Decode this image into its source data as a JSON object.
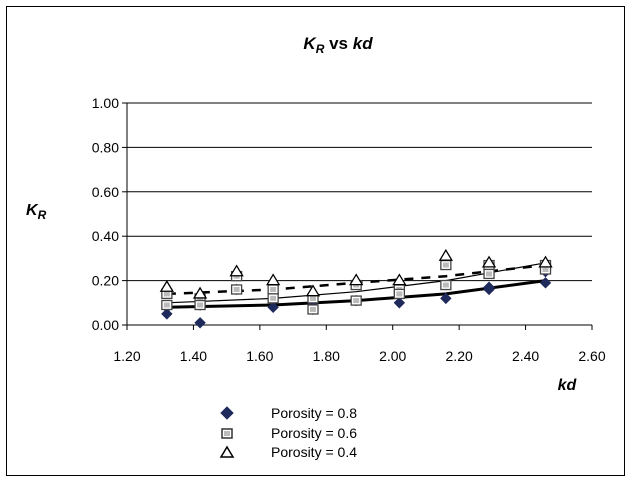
{
  "chart_data": {
    "type": "scatter",
    "title": "K_R vs kd",
    "title_main": "K",
    "title_sub": "R",
    "title_rest": " vs ",
    "title_var": "kd",
    "xlabel": "kd",
    "ylabel_main": "K",
    "ylabel_sub": "R",
    "xlim": [
      1.2,
      2.6
    ],
    "ylim": [
      0.0,
      1.0
    ],
    "x_ticks": [
      "1.20",
      "1.40",
      "1.60",
      "1.80",
      "2.00",
      "2.20",
      "2.40",
      "2.60"
    ],
    "y_ticks": [
      "0.00",
      "0.20",
      "0.40",
      "0.60",
      "0.80",
      "1.00"
    ],
    "grid": "horizontal",
    "legend_position": "bottom-left",
    "series": [
      {
        "name": "Porosity = 0.8",
        "marker": "diamond",
        "color": "#1f2a5c",
        "trendline": "bold-solid",
        "points": [
          [
            1.32,
            0.05
          ],
          [
            1.32,
            0.08
          ],
          [
            1.42,
            0.01
          ],
          [
            1.42,
            0.09
          ],
          [
            1.53,
            0.16
          ],
          [
            1.64,
            0.08
          ],
          [
            1.76,
            0.07
          ],
          [
            1.76,
            0.1
          ],
          [
            1.89,
            0.11
          ],
          [
            2.02,
            0.1
          ],
          [
            2.16,
            0.12
          ],
          [
            2.29,
            0.16
          ],
          [
            2.29,
            0.17
          ],
          [
            2.46,
            0.19
          ],
          [
            2.46,
            0.24
          ]
        ],
        "trend": [
          [
            1.32,
            0.08
          ],
          [
            1.64,
            0.09
          ],
          [
            1.89,
            0.11
          ],
          [
            2.16,
            0.14
          ],
          [
            2.46,
            0.2
          ]
        ]
      },
      {
        "name": "Porosity = 0.6",
        "marker": "square",
        "color": "#555555",
        "trendline": "dashed",
        "points": [
          [
            1.32,
            0.14
          ],
          [
            1.32,
            0.09
          ],
          [
            1.42,
            0.12
          ],
          [
            1.42,
            0.09
          ],
          [
            1.53,
            0.22
          ],
          [
            1.53,
            0.16
          ],
          [
            1.64,
            0.16
          ],
          [
            1.64,
            0.12
          ],
          [
            1.76,
            0.12
          ],
          [
            1.76,
            0.07
          ],
          [
            1.89,
            0.18
          ],
          [
            1.89,
            0.11
          ],
          [
            2.02,
            0.16
          ],
          [
            2.02,
            0.14
          ],
          [
            2.16,
            0.27
          ],
          [
            2.16,
            0.18
          ],
          [
            2.29,
            0.27
          ],
          [
            2.29,
            0.23
          ],
          [
            2.46,
            0.27
          ],
          [
            2.46,
            0.25
          ]
        ],
        "trend": [
          [
            1.32,
            0.14
          ],
          [
            1.64,
            0.16
          ],
          [
            1.89,
            0.19
          ],
          [
            2.16,
            0.22
          ],
          [
            2.46,
            0.27
          ]
        ]
      },
      {
        "name": "Porosity = 0.4",
        "marker": "triangle",
        "color": "#000000",
        "trendline": "thin-solid",
        "points": [
          [
            1.32,
            0.17
          ],
          [
            1.42,
            0.14
          ],
          [
            1.53,
            0.24
          ],
          [
            1.64,
            0.2
          ],
          [
            1.76,
            0.15
          ],
          [
            1.89,
            0.2
          ],
          [
            2.02,
            0.2
          ],
          [
            2.16,
            0.31
          ],
          [
            2.29,
            0.28
          ],
          [
            2.46,
            0.28
          ]
        ],
        "trend": [
          [
            1.32,
            0.1
          ],
          [
            1.64,
            0.12
          ],
          [
            1.89,
            0.15
          ],
          [
            2.16,
            0.2
          ],
          [
            2.46,
            0.28
          ]
        ]
      }
    ]
  }
}
